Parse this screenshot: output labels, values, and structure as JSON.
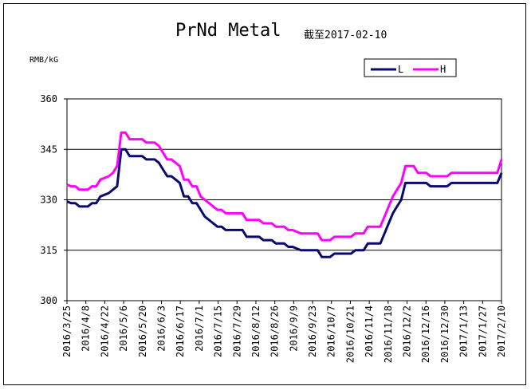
{
  "chart_data": {
    "type": "line",
    "title": "PrNd Metal",
    "subtitle": "截至2017-02-10",
    "ylabel": "RMB/kG",
    "ylim": [
      300,
      360
    ],
    "yticks": [
      300,
      315,
      330,
      345,
      360
    ],
    "grid": true,
    "legend_position": "top-right",
    "colors": {
      "L": "#0a0a6e",
      "H": "#ff00ff"
    },
    "categories": [
      "2016/3/25",
      "2016/4/8",
      "2016/4/22",
      "2016/5/6",
      "2016/5/20",
      "2016/6/3",
      "2016/6/17",
      "2016/7/1",
      "2016/7/15",
      "2016/7/29",
      "2016/8/12",
      "2016/8/26",
      "2016/9/9",
      "2016/9/23",
      "2016/10/7",
      "2016/10/21",
      "2016/11/4",
      "2016/11/18",
      "2016/12/2",
      "2016/12/16",
      "2016/12/30",
      "2017/1/13",
      "2017/1/27",
      "2017/2/10"
    ],
    "series": [
      {
        "name": "L",
        "values": [
          [
            0,
            329.5
          ],
          [
            1,
            329
          ],
          [
            2,
            329
          ],
          [
            3,
            328
          ],
          [
            4,
            328
          ],
          [
            5,
            328
          ],
          [
            6,
            329
          ],
          [
            7,
            329
          ],
          [
            8,
            331
          ],
          [
            9,
            331.5
          ],
          [
            10,
            332
          ],
          [
            11,
            333
          ],
          [
            12,
            334
          ],
          [
            13,
            345
          ],
          [
            14,
            345
          ],
          [
            15,
            343
          ],
          [
            16,
            343
          ],
          [
            17,
            343
          ],
          [
            18,
            343
          ],
          [
            19,
            342
          ],
          [
            20,
            342
          ],
          [
            21,
            342
          ],
          [
            22,
            341
          ],
          [
            23,
            339
          ],
          [
            24,
            337
          ],
          [
            25,
            337
          ],
          [
            26,
            336
          ],
          [
            27,
            335
          ],
          [
            28,
            331
          ],
          [
            29,
            331
          ],
          [
            30,
            329
          ],
          [
            31,
            329
          ],
          [
            32,
            327
          ],
          [
            33,
            325
          ],
          [
            34,
            324
          ],
          [
            35,
            323
          ],
          [
            36,
            322
          ],
          [
            37,
            322
          ],
          [
            38,
            321
          ],
          [
            39,
            321
          ],
          [
            40,
            321
          ],
          [
            41,
            321
          ],
          [
            42,
            321
          ],
          [
            43,
            319
          ],
          [
            44,
            319
          ],
          [
            45,
            319
          ],
          [
            46,
            319
          ],
          [
            47,
            318
          ],
          [
            48,
            318
          ],
          [
            49,
            318
          ],
          [
            50,
            317
          ],
          [
            51,
            317
          ],
          [
            52,
            317
          ],
          [
            53,
            316
          ],
          [
            54,
            316
          ],
          [
            55,
            315.5
          ],
          [
            56,
            315
          ],
          [
            57,
            315
          ],
          [
            58,
            315
          ],
          [
            59,
            315
          ],
          [
            60,
            315
          ],
          [
            61,
            313
          ],
          [
            62,
            313
          ],
          [
            63,
            313
          ],
          [
            64,
            314
          ],
          [
            65,
            314
          ],
          [
            66,
            314
          ],
          [
            67,
            314
          ],
          [
            68,
            314
          ],
          [
            69,
            315
          ],
          [
            70,
            315
          ],
          [
            71,
            315
          ],
          [
            72,
            317
          ],
          [
            73,
            317
          ],
          [
            74,
            317
          ],
          [
            75,
            317
          ],
          [
            76,
            320
          ],
          [
            77,
            323
          ],
          [
            78,
            326
          ],
          [
            79,
            328
          ],
          [
            80,
            330
          ],
          [
            81,
            335
          ],
          [
            82,
            335
          ],
          [
            83,
            335
          ],
          [
            84,
            335
          ],
          [
            85,
            335
          ],
          [
            86,
            335
          ],
          [
            87,
            334
          ],
          [
            88,
            334
          ],
          [
            89,
            334
          ],
          [
            90,
            334
          ],
          [
            91,
            334
          ],
          [
            92,
            335
          ],
          [
            93,
            335
          ],
          [
            94,
            335
          ],
          [
            95,
            335
          ],
          [
            96,
            335
          ],
          [
            97,
            335
          ],
          [
            98,
            335
          ],
          [
            99,
            335
          ],
          [
            100,
            335
          ],
          [
            101,
            335
          ],
          [
            102,
            335
          ],
          [
            103,
            335
          ],
          [
            104,
            338
          ]
        ]
      },
      {
        "name": "H",
        "values": [
          [
            0,
            334.5
          ],
          [
            1,
            334
          ],
          [
            2,
            334
          ],
          [
            3,
            333
          ],
          [
            4,
            333
          ],
          [
            5,
            333
          ],
          [
            6,
            334
          ],
          [
            7,
            334
          ],
          [
            8,
            336
          ],
          [
            9,
            336.5
          ],
          [
            10,
            337
          ],
          [
            11,
            338
          ],
          [
            12,
            340
          ],
          [
            13,
            350
          ],
          [
            14,
            350
          ],
          [
            15,
            348
          ],
          [
            16,
            348
          ],
          [
            17,
            348
          ],
          [
            18,
            348
          ],
          [
            19,
            347
          ],
          [
            20,
            347
          ],
          [
            21,
            347
          ],
          [
            22,
            346
          ],
          [
            23,
            344
          ],
          [
            24,
            342
          ],
          [
            25,
            342
          ],
          [
            26,
            341
          ],
          [
            27,
            340
          ],
          [
            28,
            336
          ],
          [
            29,
            336
          ],
          [
            30,
            334
          ],
          [
            31,
            334
          ],
          [
            32,
            331
          ],
          [
            33,
            330
          ],
          [
            34,
            329
          ],
          [
            35,
            328
          ],
          [
            36,
            327
          ],
          [
            37,
            327
          ],
          [
            38,
            326
          ],
          [
            39,
            326
          ],
          [
            40,
            326
          ],
          [
            41,
            326
          ],
          [
            42,
            326
          ],
          [
            43,
            324
          ],
          [
            44,
            324
          ],
          [
            45,
            324
          ],
          [
            46,
            324
          ],
          [
            47,
            323
          ],
          [
            48,
            323
          ],
          [
            49,
            323
          ],
          [
            50,
            322
          ],
          [
            51,
            322
          ],
          [
            52,
            322
          ],
          [
            53,
            321
          ],
          [
            54,
            321
          ],
          [
            55,
            320.5
          ],
          [
            56,
            320
          ],
          [
            57,
            320
          ],
          [
            58,
            320
          ],
          [
            59,
            320
          ],
          [
            60,
            320
          ],
          [
            61,
            318
          ],
          [
            62,
            318
          ],
          [
            63,
            318
          ],
          [
            64,
            319
          ],
          [
            65,
            319
          ],
          [
            66,
            319
          ],
          [
            67,
            319
          ],
          [
            68,
            319
          ],
          [
            69,
            320
          ],
          [
            70,
            320
          ],
          [
            71,
            320
          ],
          [
            72,
            322
          ],
          [
            73,
            322
          ],
          [
            74,
            322
          ],
          [
            75,
            322
          ],
          [
            76,
            325
          ],
          [
            77,
            328
          ],
          [
            78,
            331
          ],
          [
            79,
            333
          ],
          [
            80,
            335
          ],
          [
            81,
            340
          ],
          [
            82,
            340
          ],
          [
            83,
            340
          ],
          [
            84,
            338
          ],
          [
            85,
            338
          ],
          [
            86,
            338
          ],
          [
            87,
            337
          ],
          [
            88,
            337
          ],
          [
            89,
            337
          ],
          [
            90,
            337
          ],
          [
            91,
            337
          ],
          [
            92,
            338
          ],
          [
            93,
            338
          ],
          [
            94,
            338
          ],
          [
            95,
            338
          ],
          [
            96,
            338
          ],
          [
            97,
            338
          ],
          [
            98,
            338
          ],
          [
            99,
            338
          ],
          [
            100,
            338
          ],
          [
            101,
            338
          ],
          [
            102,
            338
          ],
          [
            103,
            338
          ],
          [
            104,
            342
          ]
        ]
      }
    ]
  }
}
